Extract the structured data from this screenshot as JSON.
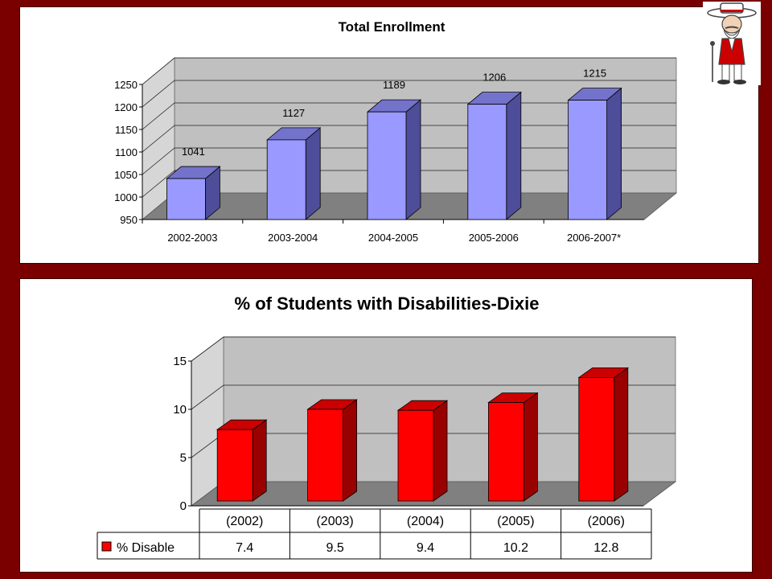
{
  "chart_data": [
    {
      "type": "bar",
      "title": "Total Enrollment",
      "categories": [
        "2002-2003",
        "2003-2004",
        "2004-2005",
        "2005-2006",
        "2006-2007*"
      ],
      "values": [
        1041,
        1127,
        1189,
        1206,
        1215
      ],
      "data_labels": [
        "1041",
        "1127",
        "1189",
        "1206",
        "1215"
      ],
      "ylim": [
        950,
        1250
      ],
      "yticks": [
        "950",
        "1000",
        "1050",
        "1100",
        "1150",
        "1200",
        "1250"
      ],
      "xlabel": "",
      "ylabel": "",
      "grid": true,
      "style": "3d",
      "colors": {
        "bar_front": "#9999ff",
        "bar_side": "#4d4d99",
        "bar_top": "#7373cc",
        "wall": "#c0c0c0",
        "floor": "#808080"
      }
    },
    {
      "type": "bar",
      "title": "% of Students with Disabilities-Dixie",
      "categories": [
        "(2002)",
        "(2003)",
        "(2004)",
        "(2005)",
        "(2006)"
      ],
      "series": [
        {
          "name": "% Disable",
          "values": [
            7.4,
            9.5,
            9.4,
            10.2,
            12.8
          ]
        }
      ],
      "table_values": [
        "7.4",
        "9.5",
        "9.4",
        "10.2",
        "12.8"
      ],
      "ylim": [
        0,
        15
      ],
      "yticks": [
        "0",
        "5",
        "10",
        "15"
      ],
      "xlabel": "",
      "ylabel": "",
      "grid": true,
      "style": "3d",
      "legend": "data-table",
      "colors": {
        "bar_front": "#ff0000",
        "bar_side": "#990000",
        "bar_top": "#cc0000",
        "wall": "#c0c0c0",
        "floor": "#808080"
      }
    }
  ],
  "mascot": {
    "icon": "colonel-mascot-icon"
  },
  "colors": {
    "background": "#7a0000",
    "panel": "#ffffff"
  }
}
